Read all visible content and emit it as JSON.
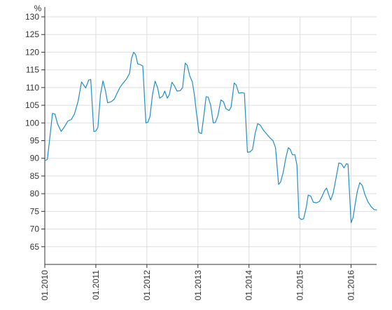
{
  "chart_data": {
    "type": "line",
    "title": "",
    "xlabel": "",
    "ylabel": "%",
    "ylim": [
      60,
      130
    ],
    "yticks": [
      65,
      70,
      75,
      80,
      85,
      90,
      95,
      100,
      105,
      110,
      115,
      120,
      125,
      130
    ],
    "xlim": [
      2010.0,
      2016.5
    ],
    "xticks": [
      {
        "value": 2010.0,
        "label": "01.2010"
      },
      {
        "value": 2011.0,
        "label": "01.2011"
      },
      {
        "value": 2012.0,
        "label": "01.2012"
      },
      {
        "value": 2013.0,
        "label": "01.2013"
      },
      {
        "value": 2014.0,
        "label": "01.2014"
      },
      {
        "value": 2015.0,
        "label": "01.2015"
      },
      {
        "value": 2016.0,
        "label": "01.2016"
      }
    ],
    "grid": true,
    "legend": "none",
    "colors": {
      "line": "#1f8fc4",
      "grid": "#dddddd",
      "axis": "#333333"
    },
    "series": [
      {
        "name": "",
        "points": [
          [
            2010.0,
            89.3
          ],
          [
            2010.05,
            89.7
          ],
          [
            2010.1,
            96.0
          ],
          [
            2010.15,
            102.7
          ],
          [
            2010.2,
            102.5
          ],
          [
            2010.25,
            99.7
          ],
          [
            2010.32,
            97.6
          ],
          [
            2010.38,
            98.8
          ],
          [
            2010.45,
            100.5
          ],
          [
            2010.52,
            101.0
          ],
          [
            2010.58,
            102.5
          ],
          [
            2010.65,
            106.0
          ],
          [
            2010.72,
            111.6
          ],
          [
            2010.8,
            109.9
          ],
          [
            2010.86,
            112.1
          ],
          [
            2010.9,
            112.3
          ],
          [
            2010.96,
            97.6
          ],
          [
            2011.0,
            97.7
          ],
          [
            2011.04,
            98.7
          ],
          [
            2011.09,
            108.0
          ],
          [
            2011.14,
            111.9
          ],
          [
            2011.19,
            109.0
          ],
          [
            2011.23,
            105.7
          ],
          [
            2011.3,
            106.0
          ],
          [
            2011.36,
            106.7
          ],
          [
            2011.42,
            108.5
          ],
          [
            2011.47,
            110.0
          ],
          [
            2011.53,
            111.2
          ],
          [
            2011.6,
            112.4
          ],
          [
            2011.66,
            114.0
          ],
          [
            2011.7,
            118.3
          ],
          [
            2011.74,
            120.0
          ],
          [
            2011.78,
            119.3
          ],
          [
            2011.82,
            116.7
          ],
          [
            2011.87,
            116.5
          ],
          [
            2011.92,
            116.1
          ],
          [
            2011.98,
            100.0
          ],
          [
            2012.02,
            100.2
          ],
          [
            2012.06,
            101.8
          ],
          [
            2012.11,
            108.0
          ],
          [
            2012.16,
            111.8
          ],
          [
            2012.21,
            110.0
          ],
          [
            2012.25,
            107.0
          ],
          [
            2012.31,
            107.6
          ],
          [
            2012.35,
            109.0
          ],
          [
            2012.4,
            107.0
          ],
          [
            2012.44,
            108.0
          ],
          [
            2012.49,
            111.5
          ],
          [
            2012.54,
            110.5
          ],
          [
            2012.59,
            109.0
          ],
          [
            2012.65,
            109.1
          ],
          [
            2012.7,
            110.0
          ],
          [
            2012.75,
            116.9
          ],
          [
            2012.79,
            116.3
          ],
          [
            2012.84,
            113.3
          ],
          [
            2012.89,
            111.6
          ],
          [
            2012.93,
            108.0
          ],
          [
            2012.97,
            103.0
          ],
          [
            2013.02,
            97.3
          ],
          [
            2013.07,
            97.0
          ],
          [
            2013.12,
            102.5
          ],
          [
            2013.16,
            107.4
          ],
          [
            2013.2,
            107.3
          ],
          [
            2013.25,
            105.0
          ],
          [
            2013.3,
            100.0
          ],
          [
            2013.34,
            100.1
          ],
          [
            2013.39,
            102.0
          ],
          [
            2013.45,
            106.5
          ],
          [
            2013.5,
            106.0
          ],
          [
            2013.55,
            104.0
          ],
          [
            2013.61,
            103.5
          ],
          [
            2013.65,
            104.5
          ],
          [
            2013.71,
            111.3
          ],
          [
            2013.75,
            110.7
          ],
          [
            2013.8,
            108.4
          ],
          [
            2013.86,
            108.6
          ],
          [
            2013.91,
            108.4
          ],
          [
            2013.97,
            91.7
          ],
          [
            2014.02,
            91.8
          ],
          [
            2014.07,
            92.5
          ],
          [
            2014.12,
            97.0
          ],
          [
            2014.17,
            99.8
          ],
          [
            2014.22,
            99.4
          ],
          [
            2014.28,
            98.0
          ],
          [
            2014.35,
            96.8
          ],
          [
            2014.41,
            95.8
          ],
          [
            2014.47,
            95.0
          ],
          [
            2014.52,
            93.0
          ],
          [
            2014.58,
            82.6
          ],
          [
            2014.62,
            83.3
          ],
          [
            2014.67,
            86.0
          ],
          [
            2014.72,
            90.0
          ],
          [
            2014.77,
            93.0
          ],
          [
            2014.81,
            92.5
          ],
          [
            2014.85,
            91.0
          ],
          [
            2014.9,
            91.0
          ],
          [
            2014.94,
            88.0
          ],
          [
            2014.98,
            73.2
          ],
          [
            2015.03,
            72.7
          ],
          [
            2015.07,
            72.9
          ],
          [
            2015.12,
            76.0
          ],
          [
            2015.16,
            79.6
          ],
          [
            2015.21,
            79.3
          ],
          [
            2015.26,
            77.6
          ],
          [
            2015.32,
            77.4
          ],
          [
            2015.38,
            77.8
          ],
          [
            2015.43,
            79.2
          ],
          [
            2015.48,
            80.8
          ],
          [
            2015.52,
            81.6
          ],
          [
            2015.56,
            79.8
          ],
          [
            2015.6,
            78.2
          ],
          [
            2015.65,
            80.2
          ],
          [
            2015.7,
            84.0
          ],
          [
            2015.76,
            88.7
          ],
          [
            2015.81,
            88.5
          ],
          [
            2015.86,
            87.3
          ],
          [
            2015.91,
            88.5
          ],
          [
            2015.94,
            88.3
          ],
          [
            2016.0,
            71.8
          ],
          [
            2016.04,
            73.3
          ],
          [
            2016.08,
            77.0
          ],
          [
            2016.12,
            80.5
          ],
          [
            2016.17,
            83.1
          ],
          [
            2016.22,
            82.3
          ],
          [
            2016.27,
            79.8
          ],
          [
            2016.33,
            77.7
          ],
          [
            2016.4,
            76.2
          ],
          [
            2016.45,
            75.5
          ],
          [
            2016.5,
            75.4
          ]
        ]
      }
    ]
  }
}
